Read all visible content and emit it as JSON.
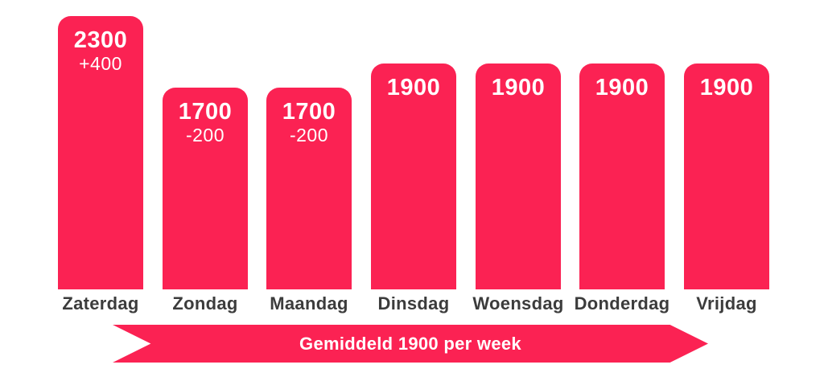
{
  "chart_data": {
    "type": "bar",
    "categories": [
      "Zaterdag",
      "Zondag",
      "Maandag",
      "Dinsdag",
      "Woensdag",
      "Donderdag",
      "Vrijdag"
    ],
    "values": [
      2300,
      1700,
      1700,
      1900,
      1900,
      1900,
      1900
    ],
    "deltas": [
      "+400",
      "-200",
      "-200",
      null,
      null,
      null,
      null
    ],
    "title": "",
    "xlabel": "",
    "ylabel": "",
    "ylim": [
      0,
      2300
    ],
    "grid": false,
    "legend_position": "none",
    "value_labels_inside_bars": true,
    "banner_label": "Gemiddeld 1900 per week"
  },
  "colors": {
    "accent": "#fb2253",
    "text_dark": "#3c3c3c",
    "text_light": "#ffffff",
    "background": "#ffffff"
  }
}
